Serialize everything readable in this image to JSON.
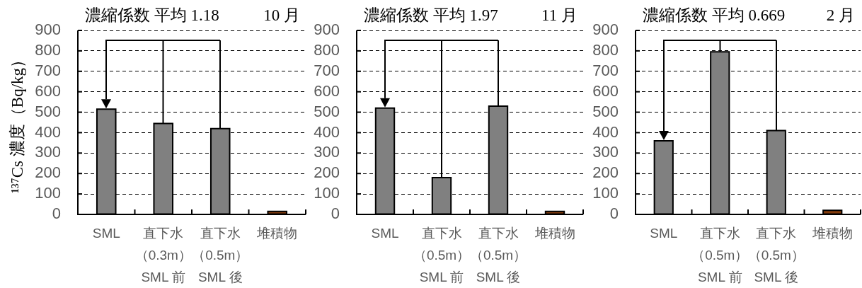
{
  "chart_data": [
    {
      "type": "bar",
      "title": "濃縮係数 平均 1.18",
      "subtitle": "10 月",
      "ylabel": "¹³⁷Cs 濃度（Bq/kg）",
      "categories": [
        "SML",
        "直下水（0.3m）SML 前",
        "直下水（0.5m）SML 後",
        "堆積物"
      ],
      "values": [
        515,
        445,
        420,
        15
      ],
      "colors": [
        "#808080",
        "#808080",
        "#808080",
        "#843c0c"
      ],
      "ylim": [
        0,
        900
      ],
      "yticks": [
        0,
        100,
        200,
        300,
        400,
        500,
        600,
        700,
        800,
        900
      ],
      "grid": "y"
    },
    {
      "type": "bar",
      "title": "濃縮係数 平均 1.97",
      "subtitle": "11 月",
      "categories": [
        "SML",
        "直下水（0.5m）SML 前",
        "直下水（0.5m）SML 後",
        "堆積物"
      ],
      "values": [
        520,
        180,
        530,
        15
      ],
      "colors": [
        "#808080",
        "#808080",
        "#808080",
        "#843c0c"
      ],
      "ylim": [
        0,
        900
      ],
      "yticks": [
        0,
        100,
        200,
        300,
        400,
        500,
        600,
        700,
        800,
        900
      ],
      "grid": "y"
    },
    {
      "type": "bar",
      "title": "濃縮係数 平均 0.669",
      "subtitle": "2 月",
      "categories": [
        "SML",
        "直下水（0.5m）SML 前",
        "直下水（0.5m）SML 後",
        "堆積物"
      ],
      "values": [
        360,
        795,
        410,
        20
      ],
      "colors": [
        "#808080",
        "#808080",
        "#808080",
        "#843c0c"
      ],
      "ylim": [
        0,
        900
      ],
      "yticks": [
        0,
        100,
        200,
        300,
        400,
        500,
        600,
        700,
        800,
        900
      ],
      "grid": "y"
    }
  ]
}
